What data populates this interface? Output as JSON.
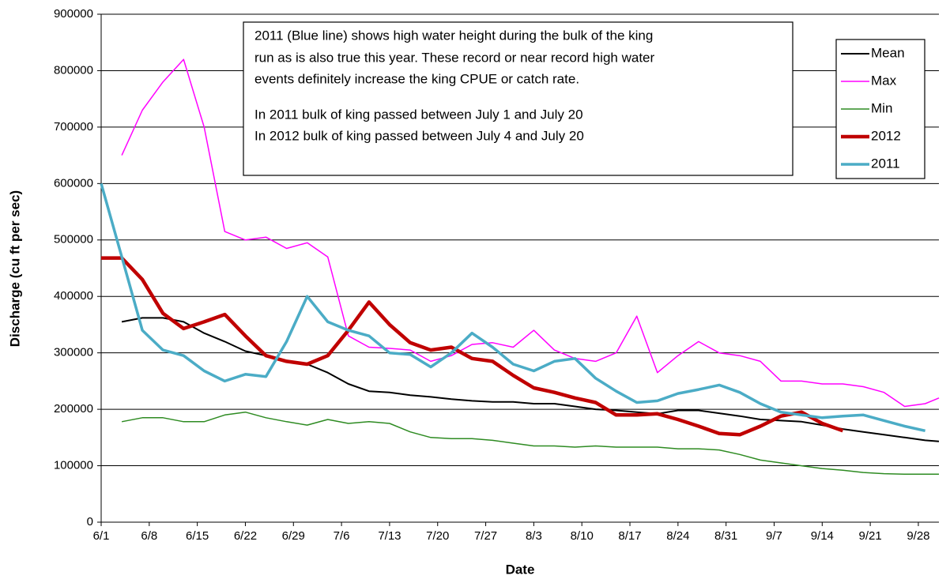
{
  "chart_data": {
    "type": "line",
    "x_label": "Date",
    "y_label": "Discharge (cu ft per sec)",
    "annotation": [
      "2011 (Blue line) shows  high water height during the bulk of the king",
      "run as is also true this year. These record or near record  high water",
      "events definitely increase the king CPUE or catch rate.",
      "In 2011 bulk of king  passed between  July 1 and July 20",
      "In 2012 bulk of king  passed between  July 4 and July 20"
    ],
    "x": [
      0,
      3,
      6,
      9,
      12,
      15,
      18,
      21,
      24,
      27,
      30,
      33,
      36,
      39,
      42,
      45,
      48,
      51,
      54,
      57,
      60,
      63,
      66,
      69,
      72,
      75,
      78,
      81,
      84,
      87,
      90,
      93,
      96,
      99,
      102,
      105,
      108,
      111,
      114,
      117,
      120,
      122
    ],
    "xlim": [
      0,
      122
    ],
    "xticks": [
      {
        "value": 0,
        "label": "6/1"
      },
      {
        "value": 7,
        "label": "6/8"
      },
      {
        "value": 14,
        "label": "6/15"
      },
      {
        "value": 21,
        "label": "6/22"
      },
      {
        "value": 28,
        "label": "6/29"
      },
      {
        "value": 35,
        "label": "7/6"
      },
      {
        "value": 42,
        "label": "7/13"
      },
      {
        "value": 49,
        "label": "7/20"
      },
      {
        "value": 56,
        "label": "7/27"
      },
      {
        "value": 63,
        "label": "8/3"
      },
      {
        "value": 70,
        "label": "8/10"
      },
      {
        "value": 77,
        "label": "8/17"
      },
      {
        "value": 84,
        "label": "8/24"
      },
      {
        "value": 91,
        "label": "8/31"
      },
      {
        "value": 98,
        "label": "9/7"
      },
      {
        "value": 105,
        "label": "9/14"
      },
      {
        "value": 112,
        "label": "9/21"
      },
      {
        "value": 119,
        "label": "9/28"
      }
    ],
    "ylim": [
      0,
      900000
    ],
    "yticks": [
      0,
      100000,
      200000,
      300000,
      400000,
      500000,
      600000,
      700000,
      800000,
      900000
    ],
    "grid": true,
    "legend": "top-right",
    "series": [
      {
        "name": "Mean",
        "color": "#000000",
        "values": [
          null,
          355000,
          362000,
          362000,
          355000,
          335000,
          320000,
          303000,
          295000,
          285000,
          280000,
          265000,
          245000,
          232000,
          230000,
          225000,
          222000,
          218000,
          215000,
          213000,
          213000,
          210000,
          210000,
          205000,
          200000,
          198000,
          195000,
          192000,
          198000,
          198000,
          193000,
          188000,
          182000,
          180000,
          178000,
          172000,
          165000,
          160000,
          155000,
          150000,
          145000,
          143000
        ]
      },
      {
        "name": "Max",
        "color": "#ff00ff",
        "values": [
          null,
          650000,
          730000,
          780000,
          820000,
          700000,
          515000,
          500000,
          505000,
          485000,
          495000,
          470000,
          330000,
          310000,
          308000,
          305000,
          285000,
          295000,
          315000,
          318000,
          310000,
          340000,
          305000,
          290000,
          285000,
          300000,
          365000,
          265000,
          295000,
          320000,
          300000,
          295000,
          285000,
          250000,
          250000,
          245000,
          245000,
          240000,
          230000,
          205000,
          210000,
          220000
        ]
      },
      {
        "name": "Min",
        "color": "#2e8b22",
        "values": [
          null,
          178000,
          185000,
          185000,
          178000,
          178000,
          190000,
          195000,
          185000,
          178000,
          172000,
          182000,
          175000,
          178000,
          175000,
          160000,
          150000,
          148000,
          148000,
          145000,
          140000,
          135000,
          135000,
          133000,
          135000,
          133000,
          133000,
          133000,
          130000,
          130000,
          128000,
          120000,
          110000,
          105000,
          100000,
          95000,
          92000,
          88000,
          86000,
          85000,
          85000,
          85000
        ]
      },
      {
        "name": "2012",
        "color": "#c00000",
        "values": [
          468000,
          468000,
          430000,
          370000,
          343000,
          355000,
          368000,
          330000,
          295000,
          285000,
          280000,
          295000,
          340000,
          390000,
          350000,
          318000,
          305000,
          310000,
          290000,
          285000,
          260000,
          238000,
          230000,
          220000,
          212000,
          190000,
          190000,
          192000,
          182000,
          170000,
          157000,
          155000,
          170000,
          188000,
          195000,
          175000,
          162000,
          null,
          null,
          null,
          null,
          null
        ]
      },
      {
        "name": "2011",
        "color": "#4bacc6",
        "values": [
          600000,
          470000,
          340000,
          305000,
          295000,
          268000,
          250000,
          262000,
          258000,
          320000,
          400000,
          355000,
          340000,
          330000,
          300000,
          297000,
          275000,
          300000,
          335000,
          310000,
          280000,
          268000,
          285000,
          290000,
          255000,
          232000,
          212000,
          215000,
          228000,
          235000,
          243000,
          230000,
          210000,
          195000,
          190000,
          185000,
          188000,
          190000,
          180000,
          170000,
          162000,
          null
        ]
      }
    ]
  }
}
